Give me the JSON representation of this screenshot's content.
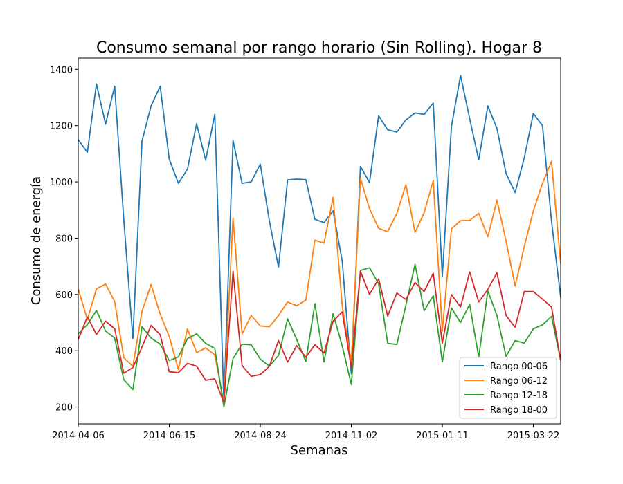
{
  "chart_data": {
    "type": "line",
    "title": "Consumo semanal por rango horario (Sin Rolling). Hogar 8",
    "xlabel": "Semanas",
    "ylabel": "Consumo de energía",
    "x": [
      "2014-04-06",
      "2014-04-13",
      "2014-04-20",
      "2014-04-27",
      "2014-05-04",
      "2014-05-11",
      "2014-05-18",
      "2014-05-25",
      "2014-06-01",
      "2014-06-08",
      "2014-06-15",
      "2014-06-22",
      "2014-06-29",
      "2014-07-06",
      "2014-07-13",
      "2014-07-20",
      "2014-07-27",
      "2014-08-03",
      "2014-08-10",
      "2014-08-17",
      "2014-08-24",
      "2014-08-31",
      "2014-09-07",
      "2014-09-14",
      "2014-09-21",
      "2014-09-28",
      "2014-10-05",
      "2014-10-12",
      "2014-10-19",
      "2014-10-26",
      "2014-11-02",
      "2014-11-09",
      "2014-11-16",
      "2014-11-23",
      "2014-11-30",
      "2014-12-07",
      "2014-12-14",
      "2014-12-21",
      "2014-12-28",
      "2015-01-04",
      "2015-01-11",
      "2015-01-18",
      "2015-01-25",
      "2015-02-01",
      "2015-02-08",
      "2015-02-15",
      "2015-02-22",
      "2015-03-01",
      "2015-03-08",
      "2015-03-15",
      "2015-03-22",
      "2015-03-29",
      "2015-04-05",
      "2015-04-12"
    ],
    "x_ticks": [
      "2014-04-06",
      "2014-06-15",
      "2014-08-24",
      "2014-11-02",
      "2015-01-11",
      "2015-03-22"
    ],
    "y_ticks": [
      200,
      400,
      600,
      800,
      1000,
      1200,
      1400
    ],
    "ylim": [
      140,
      1440
    ],
    "legend_position": "lower-right",
    "series": [
      {
        "name": "Rango 00-06",
        "color": "#1f77b4",
        "values": [
          1150,
          1105,
          1348,
          1205,
          1340,
          865,
          443,
          1145,
          1270,
          1340,
          1080,
          995,
          1045,
          1207,
          1077,
          1240,
          215,
          1147,
          995,
          1000,
          1063,
          860,
          697,
          1007,
          1010,
          1008,
          867,
          855,
          897,
          718,
          318,
          1055,
          998,
          1235,
          1185,
          1177,
          1220,
          1245,
          1240,
          1280,
          665,
          1197,
          1378,
          1225,
          1078,
          1270,
          1190,
          1030,
          962,
          1085,
          1243,
          1200,
          860,
          590
        ]
      },
      {
        "name": "Rango 06-12",
        "color": "#ff7f0e",
        "values": [
          620,
          510,
          620,
          637,
          575,
          375,
          345,
          540,
          635,
          530,
          450,
          333,
          478,
          393,
          410,
          385,
          215,
          872,
          460,
          525,
          488,
          485,
          525,
          573,
          560,
          580,
          793,
          782,
          945,
          560,
          360,
          1013,
          905,
          835,
          823,
          888,
          990,
          820,
          890,
          1005,
          470,
          833,
          862,
          863,
          888,
          805,
          935,
          790,
          630,
          770,
          897,
          995,
          1073,
          710
        ]
      },
      {
        "name": "Rango 12-18",
        "color": "#2ca02c",
        "values": [
          460,
          493,
          543,
          470,
          445,
          297,
          262,
          485,
          445,
          423,
          365,
          378,
          443,
          460,
          426,
          408,
          200,
          372,
          423,
          421,
          370,
          345,
          383,
          513,
          440,
          362,
          567,
          360,
          532,
          417,
          280,
          685,
          695,
          638,
          426,
          422,
          562,
          707,
          542,
          595,
          360,
          552,
          500,
          565,
          377,
          613,
          525,
          380,
          436,
          427,
          478,
          492,
          522,
          365
        ]
      },
      {
        "name": "Rango 18-00",
        "color": "#d62728",
        "values": [
          440,
          520,
          458,
          505,
          478,
          320,
          340,
          413,
          490,
          457,
          325,
          322,
          355,
          345,
          295,
          300,
          215,
          682,
          347,
          309,
          315,
          345,
          436,
          360,
          418,
          377,
          421,
          392,
          505,
          538,
          340,
          682,
          600,
          655,
          523,
          605,
          582,
          642,
          610,
          675,
          427,
          600,
          555,
          680,
          573,
          618,
          677,
          525,
          483,
          610,
          610,
          583,
          555,
          365
        ]
      }
    ]
  }
}
